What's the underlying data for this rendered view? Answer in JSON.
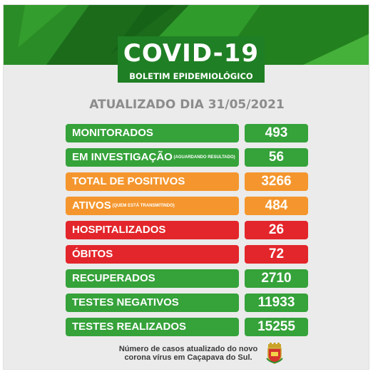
{
  "colors": {
    "green": "#35a23a",
    "orange": "#f4962d",
    "red": "#e3262b",
    "banner_green": "#1f7f24"
  },
  "header": {
    "title": "COVID-19",
    "subtitle": "BOLETIM EPIDEMIOLÓGICO"
  },
  "updated": "ATUALIZADO DIA 31/05/2021",
  "rows": [
    {
      "label": "MONITORADOS",
      "note": "",
      "value": "493",
      "color": "green"
    },
    {
      "label": "EM INVESTIGAÇÃO",
      "note": "(AGUARDANDO RESULTADO)",
      "value": "56",
      "color": "green"
    },
    {
      "label": "TOTAL DE POSITIVOS",
      "note": "",
      "value": "3266",
      "color": "orange"
    },
    {
      "label": "ATIVOS",
      "note": "(QUEM ESTÁ TRANSMITINDO)",
      "value": "484",
      "color": "orange"
    },
    {
      "label": "HOSPITALIZADOS",
      "note": "",
      "value": "26",
      "color": "red"
    },
    {
      "label": "ÓBITOS",
      "note": "",
      "value": "72",
      "color": "red"
    },
    {
      "label": "RECUPERADOS",
      "note": "",
      "value": "2710",
      "color": "green"
    },
    {
      "label": "TESTES NEGATIVOS",
      "note": "",
      "value": "11933",
      "color": "green"
    },
    {
      "label": "TESTES REALIZADOS",
      "note": "",
      "value": "15255",
      "color": "green"
    }
  ],
  "footer": {
    "line1": "Número de casos atualizado do novo",
    "line2": "corona vírus em Caçapava do Sul.",
    "crest_icon": "municipal-crest-icon"
  }
}
